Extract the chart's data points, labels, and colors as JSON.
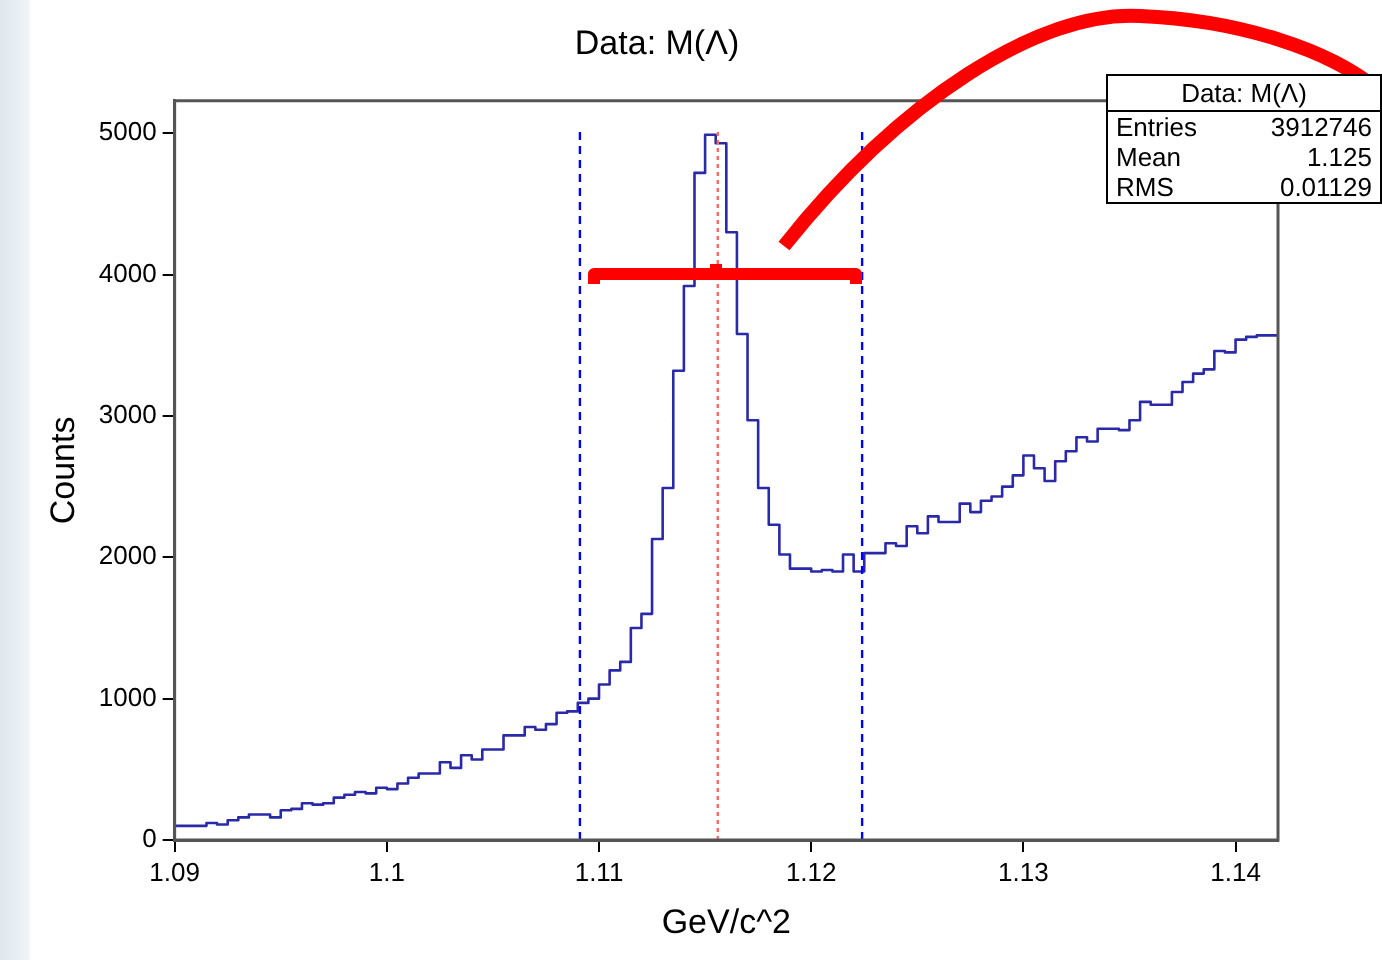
{
  "chart_data": {
    "type": "step",
    "title": "Data: M(Λ)",
    "xlabel": "GeV/c^2",
    "ylabel": "Counts",
    "x": [
      1.09,
      1.0905,
      1.091,
      1.0915,
      1.092,
      1.0925,
      1.093,
      1.0935,
      1.094,
      1.0945,
      1.095,
      1.0955,
      1.096,
      1.0965,
      1.097,
      1.0975,
      1.098,
      1.0985,
      1.099,
      1.0995,
      1.1,
      1.1005,
      1.101,
      1.1015,
      1.102,
      1.1025,
      1.103,
      1.1035,
      1.104,
      1.1045,
      1.105,
      1.1055,
      1.106,
      1.1065,
      1.107,
      1.1075,
      1.108,
      1.1085,
      1.109,
      1.1095,
      1.11,
      1.1105,
      1.111,
      1.1115,
      1.112,
      1.1125,
      1.113,
      1.1135,
      1.114,
      1.1145,
      1.115,
      1.1155,
      1.116,
      1.1165,
      1.117,
      1.1175,
      1.118,
      1.1185,
      1.119,
      1.1195,
      1.12,
      1.1205,
      1.121,
      1.1215,
      1.122,
      1.1225,
      1.123,
      1.1235,
      1.124,
      1.1245,
      1.125,
      1.1255,
      1.126,
      1.1265,
      1.127,
      1.1275,
      1.128,
      1.1285,
      1.129,
      1.1295,
      1.13,
      1.1305,
      1.131,
      1.1315,
      1.132,
      1.1325,
      1.133,
      1.1335,
      1.134,
      1.1345,
      1.135,
      1.1355,
      1.136,
      1.1365,
      1.137,
      1.1375,
      1.138,
      1.1385,
      1.139,
      1.1395,
      1.14,
      1.1405,
      1.141,
      1.1415,
      1.142
    ],
    "values": [
      100,
      100,
      100,
      100,
      120,
      110,
      140,
      160,
      180,
      180,
      160,
      210,
      220,
      260,
      250,
      260,
      300,
      320,
      340,
      330,
      370,
      360,
      400,
      440,
      470,
      470,
      550,
      510,
      600,
      570,
      640,
      640,
      740,
      740,
      800,
      780,
      820,
      900,
      910,
      970,
      1000,
      1100,
      1200,
      1260,
      1500,
      1600,
      2130,
      2490,
      3320,
      3920,
      4720,
      4990,
      4930,
      4300,
      3580,
      2970,
      2490,
      2230,
      2020,
      1920,
      1920,
      1900,
      1910,
      1900,
      2020,
      1900,
      2030,
      2030,
      2100,
      2080,
      2220,
      2170,
      2290,
      2250,
      2250,
      2380,
      2320,
      2400,
      2430,
      2500,
      2580,
      2720,
      2630,
      2540,
      2680,
      2750,
      2850,
      2820,
      2910,
      2910,
      2900,
      2970,
      3100,
      3080,
      3080,
      3170,
      3240,
      3300,
      3330,
      3460,
      3450,
      3540,
      3560,
      3570,
      3570
    ],
    "color": "#2a2aa8",
    "xlim": [
      1.09,
      1.142
    ],
    "xticks": [
      1.09,
      1.1,
      1.11,
      1.12,
      1.13,
      1.14
    ],
    "ylim": [
      0,
      5230
    ],
    "yticks": [
      0,
      1000,
      2000,
      3000,
      4000,
      5000
    ],
    "grid": false,
    "legend": false,
    "ref_lines": [
      {
        "axis": "x",
        "value": 1.1091,
        "color": "#0000ff",
        "line_style": "dashed"
      },
      {
        "axis": "x",
        "value": 1.1224,
        "color": "#0000ff",
        "line_style": "dashed"
      },
      {
        "axis": "x",
        "value": 1.1156,
        "color": "#ff6666",
        "line_style": "dotted"
      }
    ],
    "annotations": [
      "Data: M(Λ)",
      "Entries 3912746",
      "Mean 1.125",
      "RMS 0.01129"
    ]
  }
}
